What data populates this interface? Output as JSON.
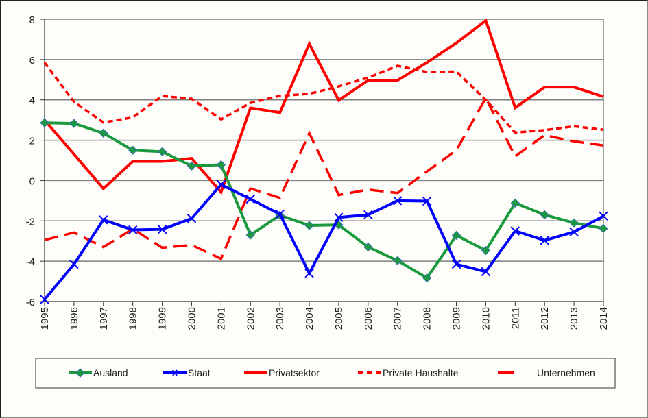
{
  "chart_data": {
    "type": "line",
    "title": "",
    "xlabel": "",
    "ylabel": "",
    "ylim": [
      -6,
      8
    ],
    "yticks": [
      "8",
      "6",
      "4",
      "2",
      "0",
      "-2",
      "-4",
      "-6"
    ],
    "ytick_values": [
      8,
      6,
      4,
      2,
      0,
      -2,
      -4,
      -6
    ],
    "grid": true,
    "legend_position": "bottom",
    "categories": [
      "1995",
      "1996",
      "1997",
      "1998",
      "1999",
      "2000",
      "2001",
      "2002",
      "2003",
      "2004",
      "2005",
      "2006",
      "2007",
      "2008",
      "2009",
      "2010",
      "2011",
      "2012",
      "2013",
      "2014"
    ],
    "series": [
      {
        "name": "Ausland",
        "color": "#1a9a3c",
        "style": "solid-diamond",
        "values": [
          2.86,
          2.83,
          2.35,
          1.5,
          1.43,
          0.72,
          0.78,
          -2.7,
          -1.72,
          -2.23,
          -2.2,
          -3.3,
          -3.97,
          -4.83,
          -2.72,
          -3.47,
          -1.12,
          -1.7,
          -2.1,
          -2.38
        ]
      },
      {
        "name": "Staat",
        "color": "#0000ff",
        "style": "solid-x",
        "values": [
          -5.9,
          -4.15,
          -1.95,
          -2.45,
          -2.42,
          -1.88,
          -0.2,
          -0.92,
          -1.67,
          -4.6,
          -1.83,
          -1.7,
          -1.0,
          -1.02,
          -4.15,
          -4.52,
          -2.5,
          -2.97,
          -2.55,
          -1.76
        ]
      },
      {
        "name": "Privatsektor",
        "color": "#ff0000",
        "style": "solid",
        "values": [
          3.0,
          1.3,
          -0.4,
          0.95,
          0.95,
          1.1,
          -0.58,
          3.6,
          3.37,
          6.78,
          3.98,
          4.97,
          4.97,
          5.85,
          6.82,
          7.93,
          3.61,
          4.63,
          4.63,
          4.16
        ]
      },
      {
        "name": "Private Haushalte",
        "color": "#ff0000",
        "style": "short-dash",
        "values": [
          5.85,
          3.9,
          2.88,
          3.13,
          4.19,
          4.05,
          3.03,
          3.85,
          4.2,
          4.3,
          4.67,
          5.1,
          5.69,
          5.38,
          5.4,
          4.0,
          2.38,
          2.5,
          2.69,
          2.52
        ]
      },
      {
        "name": "Unternehmen",
        "color": "#ff0000",
        "style": "long-dash",
        "values": [
          -2.95,
          -2.58,
          -3.3,
          -2.4,
          -3.33,
          -3.2,
          -3.88,
          -0.4,
          -0.86,
          2.35,
          -0.72,
          -0.45,
          -0.62,
          0.45,
          1.5,
          4.09,
          1.2,
          2.25,
          1.94,
          1.74
        ]
      }
    ]
  }
}
